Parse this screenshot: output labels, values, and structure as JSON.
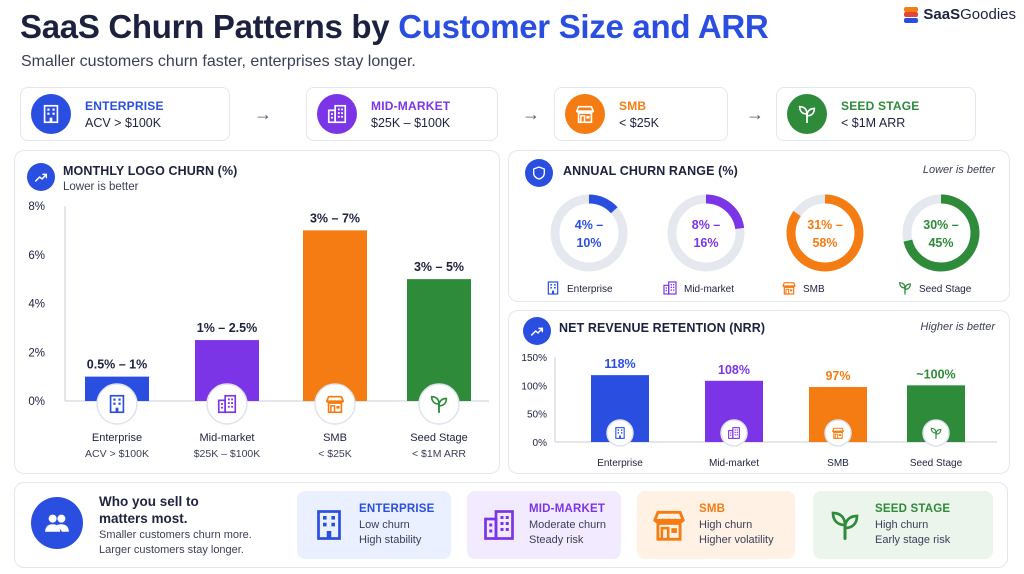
{
  "header": {
    "title_part1": "SaaS Churn Patterns by ",
    "title_part2": "Customer Size and ARR",
    "subtitle": "Smaller customers churn faster, enterprises stay longer.",
    "brand_bold": "SaaS",
    "brand_rest": "Goodies"
  },
  "colors": {
    "enterprise": "#2a4fe0",
    "mid_market": "#7b35e6",
    "smb": "#f57c12",
    "seed": "#2e8b3a",
    "track": "#e6e8f0"
  },
  "segments": [
    {
      "name": "ENTERPRISE",
      "range": "ACV > $100K",
      "icon": "building-icon"
    },
    {
      "name": "MID-MARKET",
      "range": "$25K – $100K",
      "icon": "office-icon"
    },
    {
      "name": "SMB",
      "range": "< $25K",
      "icon": "storefront-icon"
    },
    {
      "name": "SEED STAGE",
      "range": "< $1M ARR",
      "icon": "sprout-icon"
    }
  ],
  "logo_churn": {
    "title": "MONTHLY LOGO CHURN (%)",
    "subtitle": "Lower is better"
  },
  "annual_churn": {
    "title": "ANNUAL CHURN RANGE (%)",
    "note": "Lower is better",
    "items": [
      {
        "line1": "4% –",
        "line2": "10%",
        "label": "Enterprise"
      },
      {
        "line1": "8% –",
        "line2": "16%",
        "label": "Mid-market"
      },
      {
        "line1": "31% –",
        "line2": "58%",
        "label": "SMB"
      },
      {
        "line1": "30% –",
        "line2": "45%",
        "label": "Seed Stage"
      }
    ]
  },
  "nrr": {
    "title": "NET REVENUE RETENTION (NRR)",
    "note": "Higher is better"
  },
  "bottom": {
    "heading": "Who you sell to matters most.",
    "text": "Smaller customers churn more. Larger customers stay longer.",
    "tiles": [
      {
        "name": "ENTERPRISE",
        "line1": "Low churn",
        "line2": "High stability"
      },
      {
        "name": "MID-MARKET",
        "line1": "Moderate churn",
        "line2": "Steady risk"
      },
      {
        "name": "SMB",
        "line1": "High churn",
        "line2": "Higher volatility"
      },
      {
        "name": "SEED STAGE",
        "line1": "High churn",
        "line2": "Early stage risk"
      }
    ]
  },
  "chart_data": [
    {
      "type": "bar",
      "title": "MONTHLY LOGO CHURN (%)",
      "subtitle": "Lower is better",
      "categories": [
        "Enterprise",
        "Mid-market",
        "SMB",
        "Seed Stage"
      ],
      "category_sublabels": [
        "ACV > $100K",
        "$25K – $100K",
        "< $25K",
        "< $1M ARR"
      ],
      "values": [
        1,
        2.5,
        7,
        5
      ],
      "data_labels": [
        "0.5% – 1%",
        "1% – 2.5%",
        "3% – 7%",
        "3% – 5%"
      ],
      "ylim": [
        0,
        8
      ],
      "yticks": [
        0,
        2,
        4,
        6,
        8
      ],
      "ytick_labels": [
        "0%",
        "2%",
        "4%",
        "6%",
        "8%"
      ],
      "grid": false
    },
    {
      "type": "pie",
      "title": "ANNUAL CHURN RANGE (%)",
      "categories": [
        "Enterprise",
        "Mid-market",
        "SMB",
        "Seed Stage"
      ],
      "values": [
        10,
        16,
        58,
        45
      ],
      "ranges": [
        [
          4,
          10
        ],
        [
          8,
          16
        ],
        [
          31,
          58
        ],
        [
          30,
          45
        ]
      ],
      "data_labels": [
        "4% – 10%",
        "8% – 16%",
        "31% – 58%",
        "30% – 45%"
      ]
    },
    {
      "type": "bar",
      "title": "NET REVENUE RETENTION (NRR)",
      "categories": [
        "Enterprise",
        "Mid-market",
        "SMB",
        "Seed Stage"
      ],
      "values": [
        118,
        108,
        97,
        100
      ],
      "data_labels": [
        "118%",
        "108%",
        "97%",
        "~100%"
      ],
      "ylim": [
        0,
        150
      ],
      "yticks": [
        0,
        50,
        100,
        150
      ],
      "ytick_labels": [
        "0%",
        "50%",
        "100%",
        "150%"
      ],
      "grid": false
    }
  ]
}
